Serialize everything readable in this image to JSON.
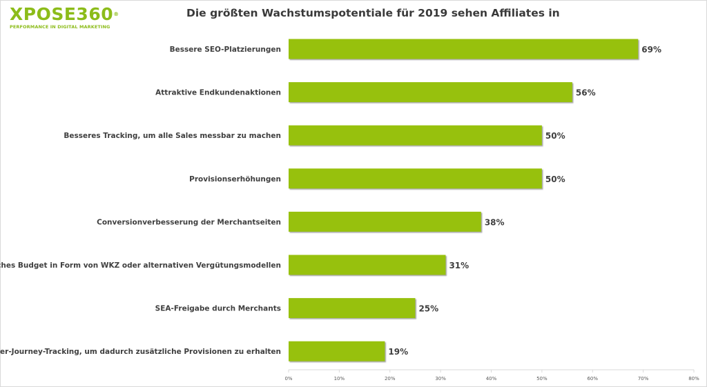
{
  "logo": {
    "name": "XPOSE360",
    "registered": "®",
    "tagline": "PERFORMANCE IN DIGITAL MARKETING"
  },
  "colors": {
    "brand": "#8cbc1a",
    "bar": "#97c10f",
    "bar_shadow": "#6e6e6e",
    "text": "#3f3f3f",
    "axis": "#d9d9d9"
  },
  "chart_data": {
    "type": "bar",
    "orientation": "horizontal",
    "title": "Die größten Wachstumspotentiale für 2019 sehen Affiliates in",
    "categories": [
      "Bessere SEO-Platzierungen",
      "Attraktive Endkundenaktionen",
      "Besseres Tracking, um alle Sales messbar zu machen",
      "Provisionserhöhungen",
      "Conversionverbesserung der Merchantseiten",
      "Zusätzliches Budget in Form von WKZ oder alternativen Vergütungsmodellen",
      "SEA-Freigabe durch Merchants",
      "Customer-Journey-Tracking, um dadurch zusätzliche Provisionen zu erhalten"
    ],
    "values": [
      69,
      56,
      50,
      50,
      38,
      31,
      25,
      19
    ],
    "value_labels": [
      "69%",
      "56%",
      "50%",
      "50%",
      "38%",
      "31%",
      "25%",
      "19%"
    ],
    "xlim": [
      0,
      80
    ],
    "x_ticks": [
      "0%",
      "10%",
      "20%",
      "30%",
      "40%",
      "50%",
      "60%",
      "70%",
      "80%"
    ],
    "grid": false,
    "legend": "none"
  }
}
